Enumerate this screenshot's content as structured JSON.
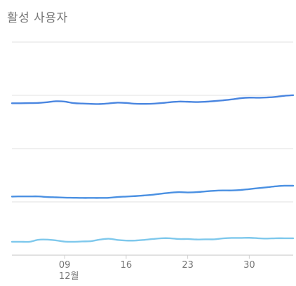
{
  "chart_title": "활성 사용자",
  "chart_data": {
    "type": "line",
    "title": "활성 사용자",
    "xlabel": "",
    "ylabel": "",
    "x_ticks": [
      {
        "day": 9,
        "label": "09",
        "sublabel": "12월"
      },
      {
        "day": 16,
        "label": "16",
        "sublabel": ""
      },
      {
        "day": 23,
        "label": "23",
        "sublabel": ""
      },
      {
        "day": 30,
        "label": "30",
        "sublabel": ""
      }
    ],
    "x": [
      3,
      4,
      5,
      6,
      7,
      8,
      9,
      10,
      11,
      12,
      13,
      14,
      15,
      16,
      17,
      18,
      19,
      20,
      21,
      22,
      23,
      24,
      25,
      26,
      27,
      28,
      29,
      30,
      31,
      32,
      33,
      34,
      35
    ],
    "grid": true,
    "series": [
      {
        "color": "#4a86e0",
        "values": [
          99.8,
          99.8,
          99.9,
          100.0,
          100.5,
          101.1,
          100.9,
          99.9,
          99.6,
          99.4,
          99.3,
          99.7,
          100.2,
          100.0,
          99.5,
          99.4,
          99.5,
          99.9,
          100.5,
          100.9,
          100.8,
          100.6,
          100.8,
          101.2,
          101.7,
          102.3,
          103.1,
          103.5,
          103.4,
          103.6,
          104.0,
          104.7,
          105.1
        ]
      },
      {
        "color": "#4a90e2",
        "values": [
          38.5,
          38.6,
          38.6,
          38.6,
          38.2,
          38.0,
          37.8,
          37.7,
          37.6,
          37.6,
          37.6,
          37.7,
          38.2,
          38.5,
          38.8,
          39.2,
          39.7,
          40.4,
          41.0,
          41.4,
          41.2,
          41.4,
          41.9,
          42.3,
          42.5,
          42.5,
          42.8,
          43.4,
          44.0,
          44.6,
          45.2,
          45.6,
          45.6
        ]
      },
      {
        "color": "#7ec8ec",
        "values": [
          8.8,
          8.8,
          8.8,
          10.1,
          10.2,
          9.7,
          8.9,
          8.8,
          9.0,
          9.2,
          10.2,
          10.8,
          10.0,
          9.6,
          9.6,
          10.0,
          10.6,
          11.1,
          11.1,
          10.6,
          10.6,
          10.3,
          10.4,
          10.4,
          11.0,
          11.3,
          11.3,
          11.4,
          11.1,
          10.9,
          11.1,
          11.1,
          11.1
        ]
      }
    ],
    "ylim": [
      0,
      140
    ],
    "y_gridlines": [
      0,
      35,
      70,
      105,
      140
    ]
  }
}
